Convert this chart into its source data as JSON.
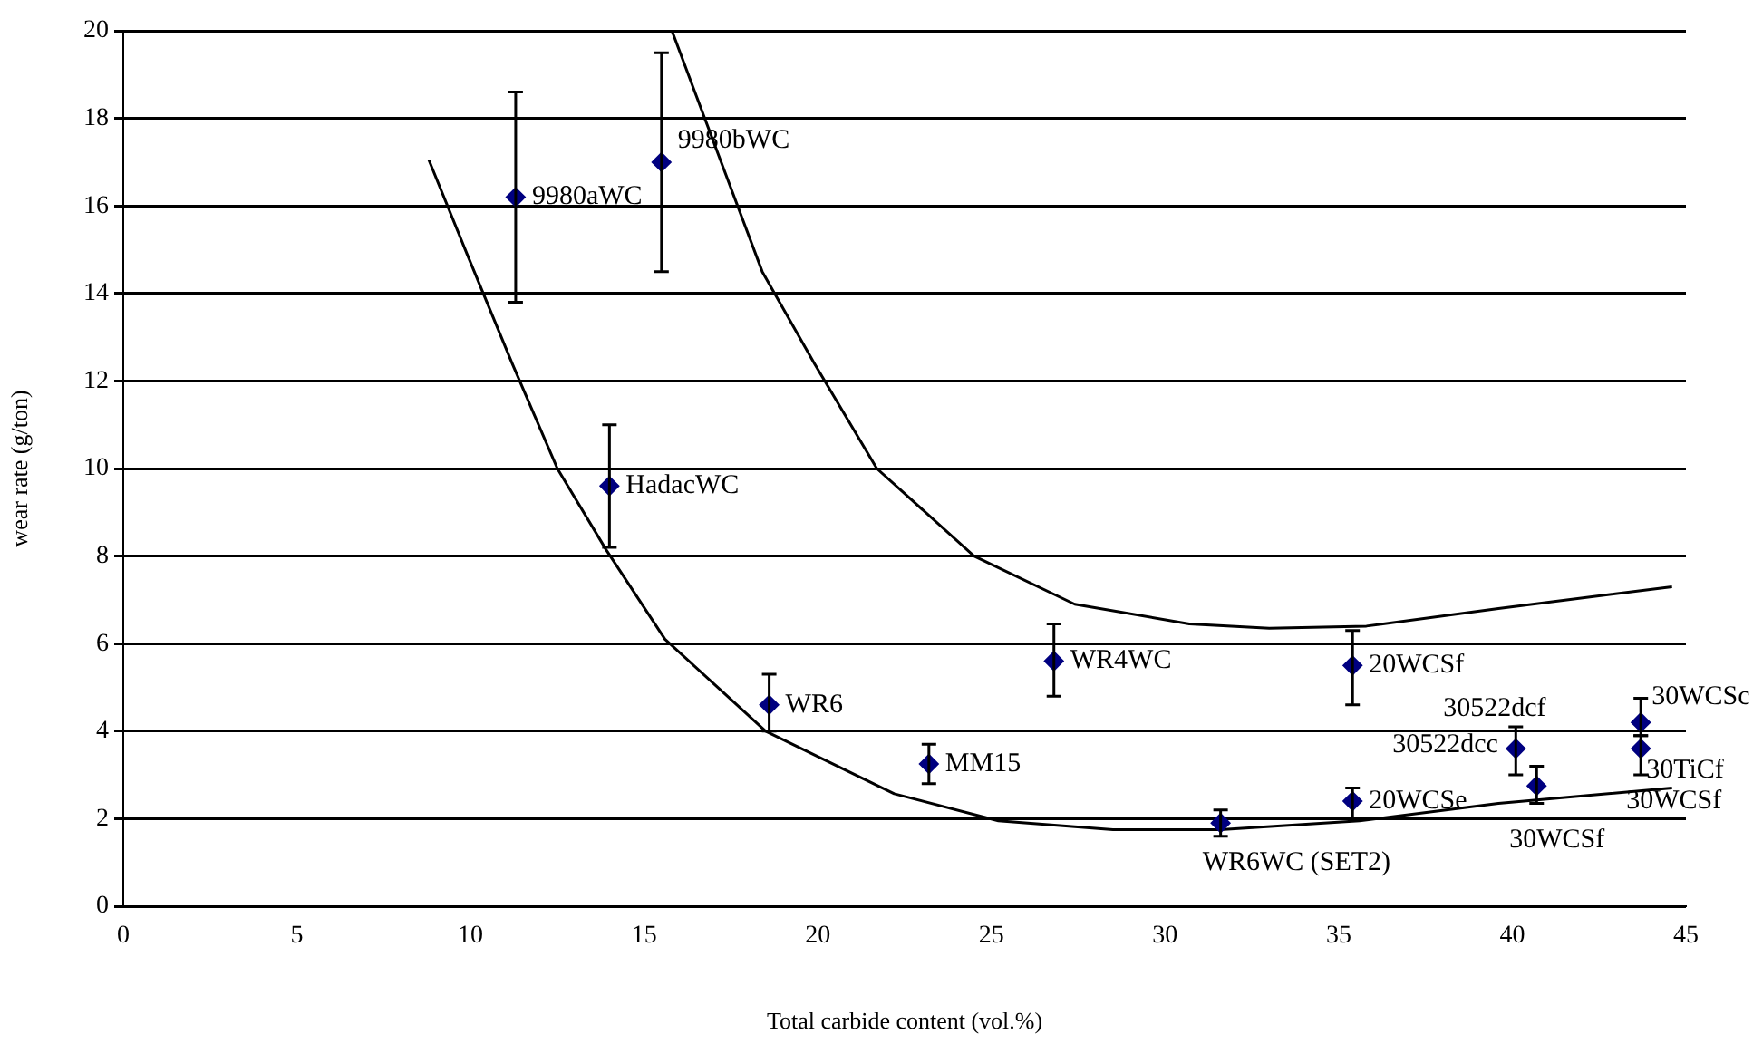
{
  "chart_data": {
    "type": "scatter",
    "xlabel": "Total carbide content (vol.%)",
    "ylabel": "wear rate (g/ton)",
    "xlim": [
      0,
      45
    ],
    "ylim": [
      0,
      20
    ],
    "xticks": [
      0,
      5,
      10,
      15,
      20,
      25,
      30,
      35,
      40,
      45
    ],
    "yticks": [
      0,
      2,
      4,
      6,
      8,
      10,
      12,
      14,
      16,
      18,
      20
    ],
    "grid": "y",
    "marker": "diamond",
    "series": [
      {
        "type": "scatter",
        "color": "#000080",
        "x": [
          11.3,
          15.5,
          14.0,
          18.6,
          23.2,
          26.8,
          31.6,
          35.4,
          35.4,
          40.1,
          40.7,
          43.7,
          43.7
        ],
        "values": [
          16.2,
          17.0,
          9.6,
          4.6,
          3.25,
          5.6,
          1.9,
          2.4,
          5.5,
          3.6,
          2.75,
          4.2,
          3.6
        ],
        "errors": [
          [
            13.8,
            18.6
          ],
          [
            14.5,
            19.5
          ],
          [
            8.2,
            11.0
          ],
          [
            4.0,
            5.3
          ],
          [
            2.8,
            3.7
          ],
          [
            4.8,
            6.45
          ],
          [
            1.6,
            2.2
          ],
          [
            2.0,
            2.7
          ],
          [
            4.6,
            6.3
          ],
          [
            3.0,
            4.1
          ],
          [
            2.35,
            3.2
          ],
          [
            3.9,
            4.75
          ],
          [
            3.0,
            3.9
          ]
        ]
      },
      {
        "type": "line",
        "color": "#000000",
        "marker": "none",
        "x": [
          8.8,
          9.9,
          11.2,
          12.5,
          13.9,
          15.6,
          18.5,
          22.2,
          25.2,
          28.5,
          31.6,
          35.6,
          39.6,
          44.6
        ],
        "values": [
          17.05,
          14.9,
          12.4,
          10.0,
          8.15,
          6.1,
          4.0,
          2.57,
          1.95,
          1.75,
          1.75,
          1.95,
          2.35,
          2.7
        ]
      },
      {
        "type": "line",
        "color": "#000000",
        "marker": "none",
        "x": [
          15.8,
          18.4,
          19.9,
          21.7,
          24.5,
          27.4,
          30.7,
          33.0,
          35.8,
          39.6,
          44.6
        ],
        "values": [
          20.0,
          14.5,
          12.4,
          10.0,
          8.0,
          6.9,
          6.45,
          6.35,
          6.4,
          6.8,
          7.3
        ]
      }
    ],
    "annotations": [
      {
        "text": "9980aWC",
        "x": 11.3,
        "y": 16.2
      },
      {
        "text": "9980bWC",
        "x": 15.5,
        "y": 17.0
      },
      {
        "text": "HadacWC",
        "x": 14.0,
        "y": 9.6
      },
      {
        "text": "WR6",
        "x": 18.6,
        "y": 4.6
      },
      {
        "text": "MM15",
        "x": 23.2,
        "y": 3.25
      },
      {
        "text": "WR4WC",
        "x": 26.8,
        "y": 5.6
      },
      {
        "text": "WR6WC (SET2)",
        "x": 31.6,
        "y": 1.9
      },
      {
        "text": "20WCSe",
        "x": 35.4,
        "y": 2.4
      },
      {
        "text": "20WCSf",
        "x": 35.4,
        "y": 5.5
      },
      {
        "text": "30522dcc",
        "x": 40.1,
        "y": 3.6
      },
      {
        "text": "30WCSf",
        "x": 40.7,
        "y": 2.75
      },
      {
        "text": "30WCSc",
        "x": 43.7,
        "y": 4.2
      },
      {
        "text": "30TiCf",
        "x": 43.7,
        "y": 3.6
      },
      {
        "text": "30522dcf",
        "x": 40.1,
        "y": 3.6
      },
      {
        "text": "30WCSf",
        "x": 43.7,
        "y": 3.6
      }
    ]
  }
}
